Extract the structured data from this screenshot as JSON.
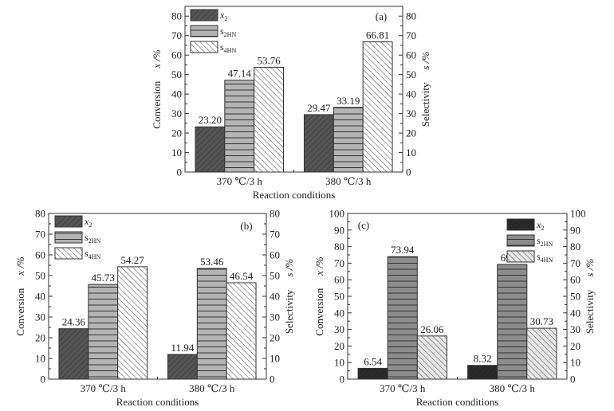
{
  "chart_data": [
    {
      "type": "bar",
      "panel_label": "(a)",
      "title": "",
      "xlabel": "Reaction conditions",
      "ylabel_left": "Conversion",
      "ylabel_left_symbol": "x /%",
      "ylabel_right": "Selectivity",
      "ylabel_right_symbol": "s /%",
      "ylim": [
        0,
        85
      ],
      "yticks": [
        0,
        10,
        20,
        30,
        40,
        50,
        60,
        70,
        80
      ],
      "categories": [
        "370 ℃/3 h",
        "380 ℃/3 h"
      ],
      "legend_position": "top-left",
      "series": [
        {
          "name": "x2",
          "label_main": "x",
          "label_sub": "2",
          "values": [
            23.2,
            29.47
          ],
          "labels": [
            "23.20",
            "29.47"
          ],
          "fill": "#555555",
          "pattern": "diag-right"
        },
        {
          "name": "s2HN",
          "label_main": "s",
          "label_sub": "2HN",
          "values": [
            47.14,
            33.19
          ],
          "labels": [
            "47.14",
            "33.19"
          ],
          "fill": "#b4b4b4",
          "pattern": "horizontal"
        },
        {
          "name": "s4HN",
          "label_main": "s",
          "label_sub": "4HN",
          "values": [
            53.76,
            66.81
          ],
          "labels": [
            "53.76",
            "66.81"
          ],
          "fill": "#ffffff",
          "pattern": "diag-left"
        }
      ]
    },
    {
      "type": "bar",
      "panel_label": "(b)",
      "title": "",
      "xlabel": "Reaction conditions",
      "ylabel_left": "Conversion",
      "ylabel_left_symbol": "x /%",
      "ylabel_right": "Selectivity",
      "ylabel_right_symbol": "s /%",
      "ylim": [
        0,
        80
      ],
      "yticks": [
        0,
        10,
        20,
        30,
        40,
        50,
        60,
        70,
        80
      ],
      "categories": [
        "370 ℃/3 h",
        "380 ℃/3 h"
      ],
      "legend_position": "top-left",
      "series": [
        {
          "name": "x2",
          "label_main": "x",
          "label_sub": "2",
          "values": [
            24.36,
            11.94
          ],
          "labels": [
            "24.36",
            "11.94"
          ],
          "fill": "#555555",
          "pattern": "diag-right"
        },
        {
          "name": "s2HN",
          "label_main": "s",
          "label_sub": "2HN",
          "values": [
            45.73,
            53.46
          ],
          "labels": [
            "45.73",
            "53.46"
          ],
          "fill": "#b4b4b4",
          "pattern": "horizontal"
        },
        {
          "name": "s4HN",
          "label_main": "s",
          "label_sub": "4HN",
          "values": [
            54.27,
            46.54
          ],
          "labels": [
            "54.27",
            "46.54"
          ],
          "fill": "#ffffff",
          "pattern": "diag-left"
        }
      ]
    },
    {
      "type": "bar",
      "panel_label": "(c)",
      "title": "",
      "xlabel": "Reaction conditions",
      "ylabel_left": "Conversion",
      "ylabel_left_symbol": "x /%",
      "ylabel_right": "Selectivity",
      "ylabel_right_symbol": "s /%",
      "ylim": [
        0,
        100
      ],
      "yticks": [
        0,
        10,
        20,
        30,
        40,
        50,
        60,
        70,
        80,
        90,
        100
      ],
      "categories": [
        "370 ℃/3 h",
        "380 ℃/3 h"
      ],
      "legend_position": "top-right",
      "series": [
        {
          "name": "x2",
          "label_main": "x",
          "label_sub": "2",
          "values": [
            6.54,
            8.32
          ],
          "labels": [
            "6.54",
            "8.32"
          ],
          "fill": "#2a2a2a",
          "pattern": "diag-right"
        },
        {
          "name": "s2HN",
          "label_main": "s",
          "label_sub": "2HN",
          "values": [
            73.94,
            69.27
          ],
          "labels": [
            "73.94",
            "69.27"
          ],
          "fill": "#8c8c8c",
          "pattern": "horizontal"
        },
        {
          "name": "s4HN",
          "label_main": "s",
          "label_sub": "4HN",
          "values": [
            26.06,
            30.73
          ],
          "labels": [
            "26.06",
            "30.73"
          ],
          "fill": "#e6e6e6",
          "pattern": "diag-left"
        }
      ]
    }
  ]
}
